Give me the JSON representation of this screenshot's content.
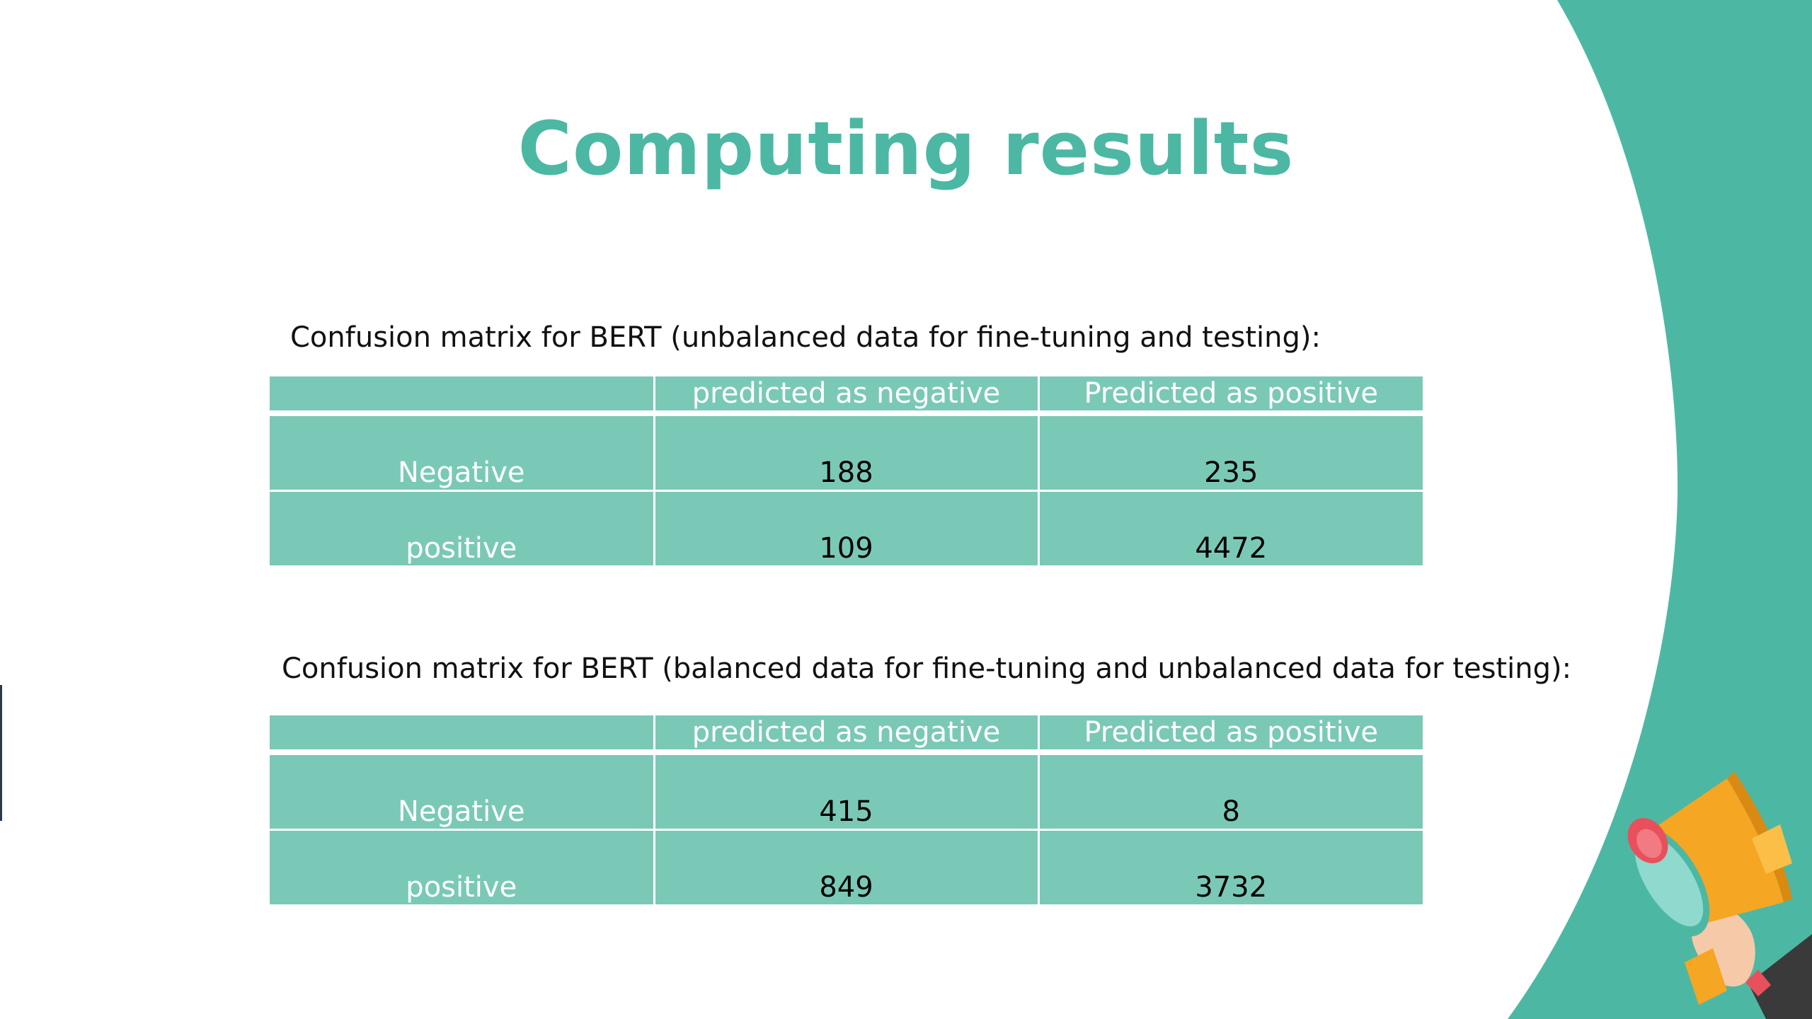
{
  "slide": {
    "title": "Computing results",
    "colors": {
      "accent": "#4cb8a3",
      "table_fill": "#7ac9b7",
      "megaphone_body": "#f5a623",
      "megaphone_red": "#e8505b"
    }
  },
  "matrices": [
    {
      "caption": "Confusion matrix for BERT (unbalanced data for fine-tuning and testing):",
      "columns": [
        "",
        "predicted as negative",
        "Predicted as positive"
      ],
      "rows": [
        {
          "label": "Negative",
          "values": [
            "188",
            "235"
          ]
        },
        {
          "label": "positive",
          "values": [
            "109",
            "4472"
          ]
        }
      ]
    },
    {
      "caption": "Confusion matrix for BERT (balanced data for fine-tuning and unbalanced data for testing):",
      "columns": [
        "",
        "predicted as negative",
        "Predicted as positive"
      ],
      "rows": [
        {
          "label": "Negative",
          "values": [
            "415",
            "8"
          ]
        },
        {
          "label": "positive",
          "values": [
            "849",
            "3732"
          ]
        }
      ]
    }
  ],
  "decorations": {
    "megaphone": "megaphone-icon"
  }
}
